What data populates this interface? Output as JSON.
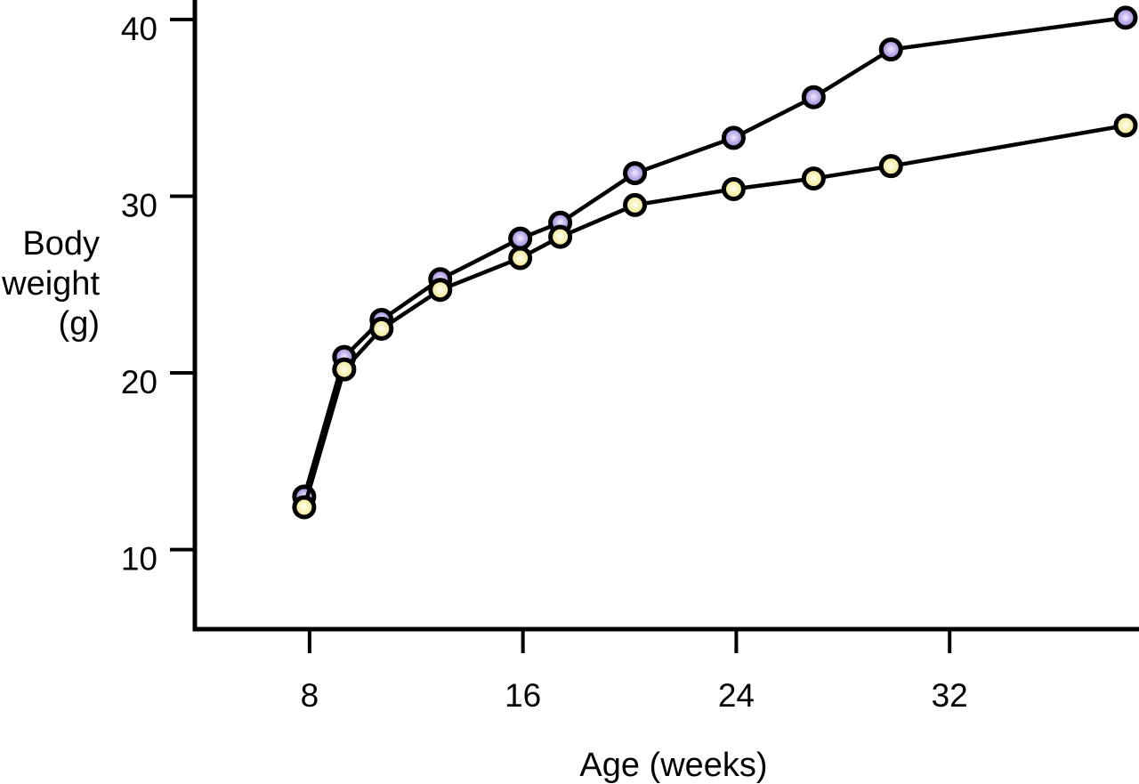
{
  "page": {
    "background": "#ffffff",
    "description": "Line chart of body weight versus age for two groups of animals"
  },
  "chart_data": {
    "type": "line",
    "title": "",
    "xlabel": "Age (weeks)",
    "ylabel": "Body weight (g)",
    "ylabel_lines": [
      "Body",
      "weight",
      "(g)"
    ],
    "x": [
      7.8,
      9.3,
      10.7,
      12.9,
      15.9,
      17.4,
      20.2,
      23.9,
      26.9,
      29.8,
      38.6
    ],
    "series": [
      {
        "name": "upper curve (purple markers)",
        "values": [
          13.0,
          20.9,
          23.0,
          25.3,
          27.6,
          28.5,
          31.3,
          33.3,
          35.6,
          38.3,
          40.1
        ],
        "marker_highlight": "#f1ecfc",
        "marker_fill": "#b9a7e8",
        "marker_edge_fill": "#8f7bce"
      },
      {
        "name": "lower curve (yellow markers)",
        "values": [
          12.4,
          20.2,
          22.5,
          24.7,
          26.5,
          27.7,
          29.5,
          30.4,
          31.0,
          31.7,
          34.0
        ],
        "marker_highlight": "#fffef5",
        "marker_fill": "#f6efad",
        "marker_edge_fill": "#e9dd84"
      }
    ],
    "x_ticks": [
      8,
      16,
      24,
      32
    ],
    "y_ticks": [
      10,
      20,
      30,
      40
    ],
    "xlim": [
      3.7,
      39.1
    ],
    "ylim": [
      5.5,
      41.1
    ],
    "grid": false,
    "legend": "none",
    "line_color": "#000000",
    "axis_color": "#000000"
  }
}
